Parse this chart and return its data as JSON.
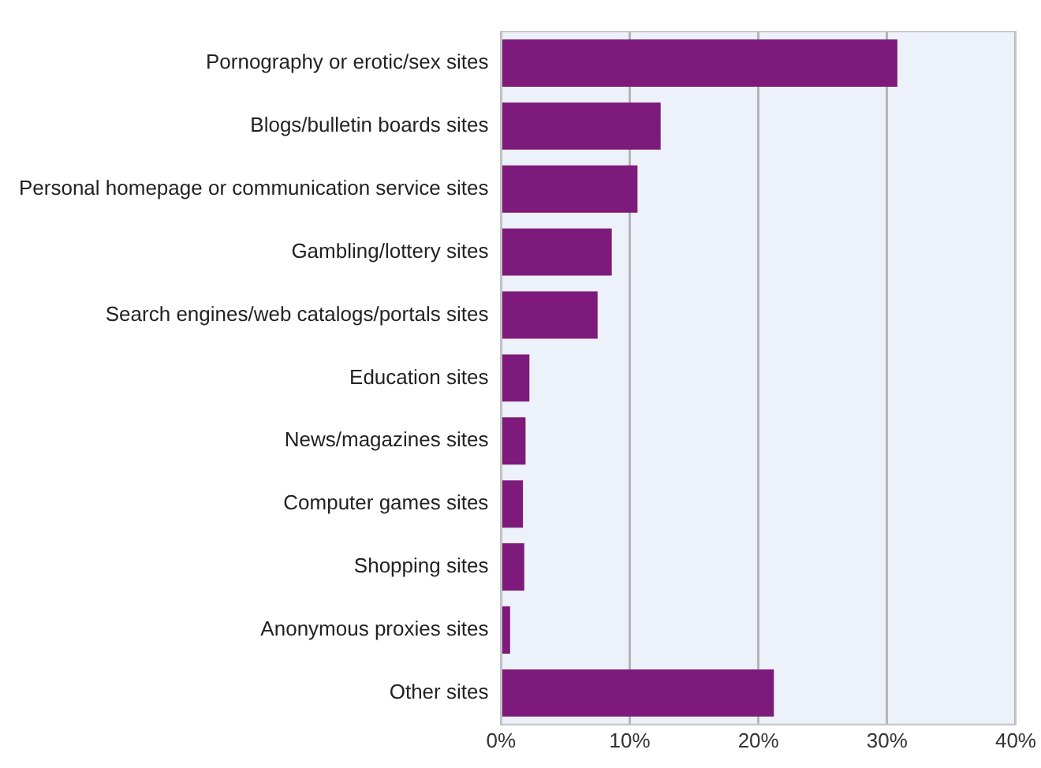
{
  "chart_data": {
    "type": "bar",
    "orientation": "horizontal",
    "categories": [
      "Pornography or erotic/sex sites",
      "Blogs/bulletin boards sites",
      "Personal homepage or communication service sites",
      "Gambling/lottery sites",
      "Search engines/web catalogs/portals sites",
      "Education sites",
      "News/magazines sites",
      "Computer games sites",
      "Shopping sites",
      "Anonymous proxies sites",
      "Other sites"
    ],
    "values": [
      30.8,
      12.4,
      10.6,
      8.6,
      7.5,
      2.2,
      1.9,
      1.7,
      1.8,
      0.7,
      21.2
    ],
    "color": "#7d1a7b",
    "xlim": [
      0,
      40
    ],
    "xticks": [
      {
        "value": 0,
        "label": "0%"
      },
      {
        "value": 10,
        "label": "10%"
      },
      {
        "value": 20,
        "label": "20%"
      },
      {
        "value": 30,
        "label": "30%"
      },
      {
        "value": 40,
        "label": "40%"
      }
    ],
    "grid": "x"
  }
}
